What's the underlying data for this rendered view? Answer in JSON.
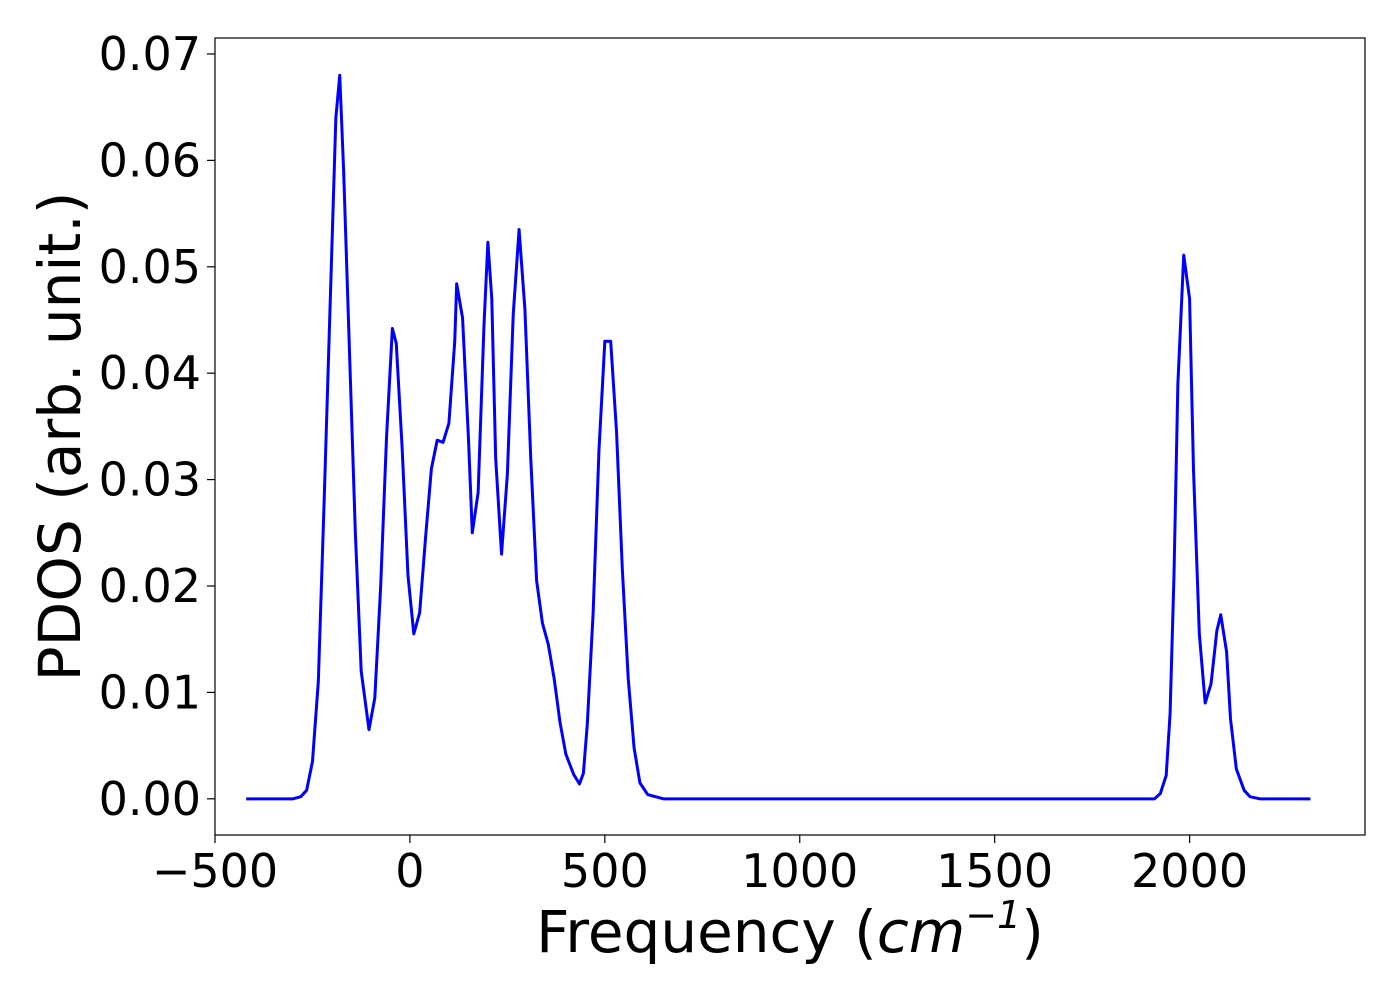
{
  "chart_data": {
    "type": "line",
    "title": "",
    "xlabel": {
      "prefix": "Frequency (",
      "italic": "cm",
      "sup": "−1",
      "suffix": ")"
    },
    "ylabel": "PDOS (arb. unit.)",
    "xlim": [
      -500,
      2450
    ],
    "ylim": [
      -0.0034,
      0.0715
    ],
    "x_ticks": [
      -500,
      0,
      500,
      1000,
      1500,
      2000
    ],
    "x_tick_labels": [
      "−500",
      "0",
      "500",
      "1000",
      "1500",
      "2000"
    ],
    "y_ticks": [
      0.0,
      0.01,
      0.02,
      0.03,
      0.04,
      0.05,
      0.06,
      0.07
    ],
    "y_tick_labels": [
      "0.00",
      "0.01",
      "0.02",
      "0.03",
      "0.04",
      "0.05",
      "0.06",
      "0.07"
    ],
    "grid": false,
    "legend": "none",
    "series": [
      {
        "color": "#0000ff",
        "x": [
          -420,
          -300,
          -280,
          -265,
          -250,
          -235,
          -220,
          -205,
          -190,
          -180,
          -170,
          -155,
          -140,
          -125,
          -105,
          -90,
          -75,
          -60,
          -45,
          -35,
          -20,
          -5,
          10,
          25,
          40,
          55,
          70,
          85,
          100,
          115,
          120,
          135,
          150,
          160,
          175,
          190,
          200,
          210,
          220,
          235,
          250,
          265,
          280,
          295,
          310,
          325,
          340,
          355,
          370,
          385,
          400,
          420,
          435,
          445,
          455,
          470,
          485,
          500,
          515,
          530,
          545,
          560,
          575,
          590,
          610,
          650,
          800,
          1000,
          1500,
          1850,
          1910,
          1925,
          1940,
          1950,
          1960,
          1970,
          1985,
          2000,
          2010,
          2025,
          2040,
          2055,
          2070,
          2080,
          2095,
          2105,
          2120,
          2140,
          2155,
          2180,
          2310
        ],
        "values": [
          0.0,
          0.0,
          0.0002,
          0.0008,
          0.0035,
          0.011,
          0.028,
          0.046,
          0.064,
          0.068,
          0.059,
          0.042,
          0.025,
          0.012,
          0.0065,
          0.0095,
          0.02,
          0.034,
          0.0442,
          0.0428,
          0.033,
          0.021,
          0.0155,
          0.0175,
          0.0245,
          0.031,
          0.0337,
          0.0335,
          0.0353,
          0.043,
          0.0484,
          0.0452,
          0.034,
          0.025,
          0.0288,
          0.0445,
          0.0523,
          0.047,
          0.032,
          0.023,
          0.0305,
          0.0455,
          0.0535,
          0.046,
          0.032,
          0.0205,
          0.0165,
          0.0145,
          0.0113,
          0.0072,
          0.0042,
          0.0023,
          0.0014,
          0.0024,
          0.007,
          0.0175,
          0.0328,
          0.043,
          0.043,
          0.0345,
          0.0215,
          0.0113,
          0.0048,
          0.0015,
          0.0004,
          0.0,
          0.0,
          0.0,
          0.0,
          0.0,
          0.0,
          0.0005,
          0.0022,
          0.008,
          0.021,
          0.039,
          0.0511,
          0.047,
          0.031,
          0.0155,
          0.009,
          0.0108,
          0.0158,
          0.0173,
          0.0138,
          0.0075,
          0.0028,
          0.0008,
          0.0002,
          0.0,
          0.0
        ]
      }
    ]
  }
}
